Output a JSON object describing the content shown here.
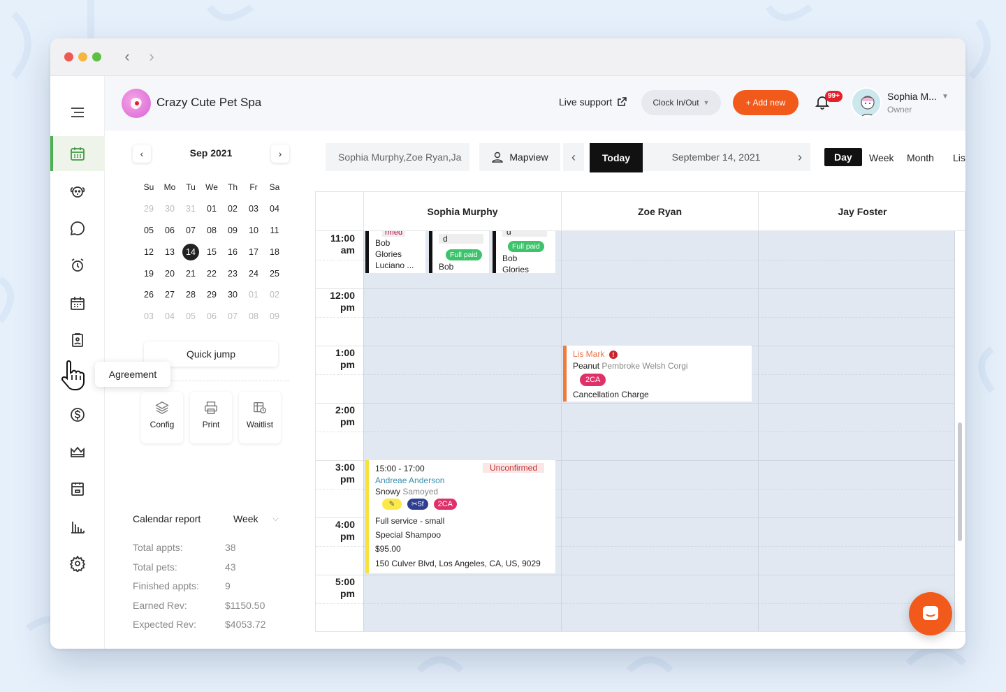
{
  "header": {
    "brand_name": "Crazy Cute Pet Spa",
    "live_support": "Live support",
    "clock_label": "Clock In/Out",
    "add_new": "+ Add new",
    "notifications_badge": "99+",
    "user_name": "Sophia M...",
    "user_role": "Owner",
    "accent_color": "#f25a1c"
  },
  "sidebar": {
    "tooltip": "Agreement",
    "icons": [
      "calendar-icon",
      "pet-icon",
      "chat-icon",
      "alarm-icon",
      "schedule-icon",
      "clipboard-icon",
      "dollar-icon",
      "crown-icon",
      "calendar-box-icon",
      "bar-chart-icon",
      "gear-icon"
    ]
  },
  "mini_calendar": {
    "title": "Sep 2021",
    "weekdays": [
      "Su",
      "Mo",
      "Tu",
      "We",
      "Th",
      "Fr",
      "Sa"
    ],
    "weeks": [
      [
        "29",
        "30",
        "31",
        "01",
        "02",
        "03",
        "04"
      ],
      [
        "05",
        "06",
        "07",
        "08",
        "09",
        "10",
        "11"
      ],
      [
        "12",
        "13",
        "14",
        "15",
        "16",
        "17",
        "18"
      ],
      [
        "19",
        "20",
        "21",
        "22",
        "23",
        "24",
        "25"
      ],
      [
        "26",
        "27",
        "28",
        "29",
        "30",
        "01",
        "02"
      ],
      [
        "03",
        "04",
        "05",
        "06",
        "07",
        "08",
        "09"
      ]
    ],
    "selected": "14",
    "quick_jump": "Quick jump"
  },
  "tools": {
    "config": "Config",
    "print": "Print",
    "waitlist": "Waitlist"
  },
  "report": {
    "title": "Calendar report",
    "period": "Week",
    "stats": [
      {
        "label": "Total appts:",
        "value": "38"
      },
      {
        "label": "Total pets:",
        "value": "43"
      },
      {
        "label": "Finished appts:",
        "value": "9"
      },
      {
        "label": "Earned Rev:",
        "value": "$1150.50"
      },
      {
        "label": "Expected Rev:",
        "value": "$4053.72"
      }
    ]
  },
  "toolbar": {
    "staff": "Sophia Murphy,Zoe Ryan,Ja",
    "mapview": "Mapview",
    "today": "Today",
    "date": "September 14, 2021",
    "views": [
      "Day",
      "Week",
      "Month",
      "Lis"
    ],
    "active_view": "Day"
  },
  "calendar": {
    "staff": [
      "Sophia Murphy",
      "Zoe Ryan",
      "Jay Foster"
    ],
    "times": [
      [
        "11:00",
        "am"
      ],
      [
        "12:00",
        "pm"
      ],
      [
        "1:00",
        "pm"
      ],
      [
        "2:00",
        "pm"
      ],
      [
        "3:00",
        "pm"
      ],
      [
        "4:00",
        "pm"
      ],
      [
        "5:00",
        "pm"
      ]
    ]
  },
  "appointments": {
    "a1": {
      "top": "rmed",
      "lines": [
        "Bob",
        "Glories",
        "Luciano ..."
      ]
    },
    "a2": {
      "top": "d",
      "paid": "Full paid",
      "line": "Bob"
    },
    "a3": {
      "top": "d",
      "paid": "Full paid",
      "lines": [
        "Bob",
        "Glories"
      ]
    },
    "lis": {
      "client": "Lis Mark",
      "pet": "Peanut",
      "breed": "Pembroke Welsh Corgi",
      "tag": "2CA",
      "service": "Cancellation Charge",
      "bar_color": "#f07a3c"
    },
    "andreae": {
      "time": "15:00 - 17:00",
      "status": "Unconfirmed",
      "client": "Andreae Anderson",
      "pet": "Snowy",
      "breed": "Samoyed",
      "tag_groom": "5f",
      "tag_ca": "2CA",
      "service": "Full service - small",
      "addon": "Special Shampoo",
      "price": "$95.00",
      "address": "150 Culver Blvd, Los Angeles, CA, US, 9029",
      "bar_color": "#f6e23c"
    }
  }
}
